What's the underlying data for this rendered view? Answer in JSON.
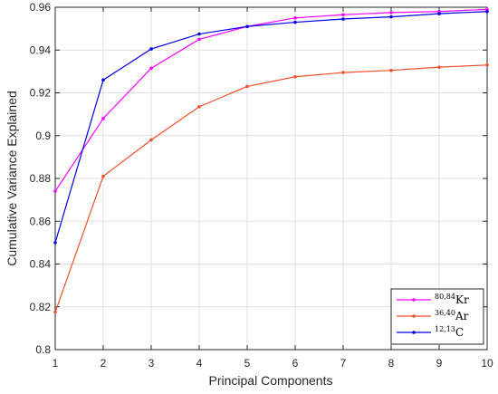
{
  "chart_data": {
    "type": "line",
    "title": "",
    "xlabel": "Principal Components",
    "ylabel": "Cumulative Variance Explained",
    "xlim": [
      1,
      10
    ],
    "ylim": [
      0.8,
      0.96
    ],
    "x": [
      1,
      2,
      3,
      4,
      5,
      6,
      7,
      8,
      9,
      10
    ],
    "xticks": [
      1,
      2,
      3,
      4,
      5,
      6,
      7,
      8,
      9,
      10
    ],
    "yticks": [
      0.8,
      0.82,
      0.84,
      0.86,
      0.88,
      0.9,
      0.92,
      0.94,
      0.96
    ],
    "grid": true,
    "legend_position": "bottom-right",
    "series": [
      {
        "name": "Kr",
        "superscript": "80,84",
        "color": "#ff00ff",
        "values": [
          0.874,
          0.908,
          0.9315,
          0.945,
          0.951,
          0.955,
          0.9565,
          0.9575,
          0.958,
          0.959
        ]
      },
      {
        "name": "Ar",
        "superscript": "36,40",
        "color": "#f0502a",
        "values": [
          0.8175,
          0.881,
          0.898,
          0.9135,
          0.923,
          0.9275,
          0.9295,
          0.9305,
          0.932,
          0.933
        ]
      },
      {
        "name": "C",
        "superscript": "12,13",
        "color": "#0000e6",
        "values": [
          0.85,
          0.926,
          0.9405,
          0.9475,
          0.951,
          0.953,
          0.9545,
          0.9555,
          0.957,
          0.958
        ]
      }
    ]
  }
}
